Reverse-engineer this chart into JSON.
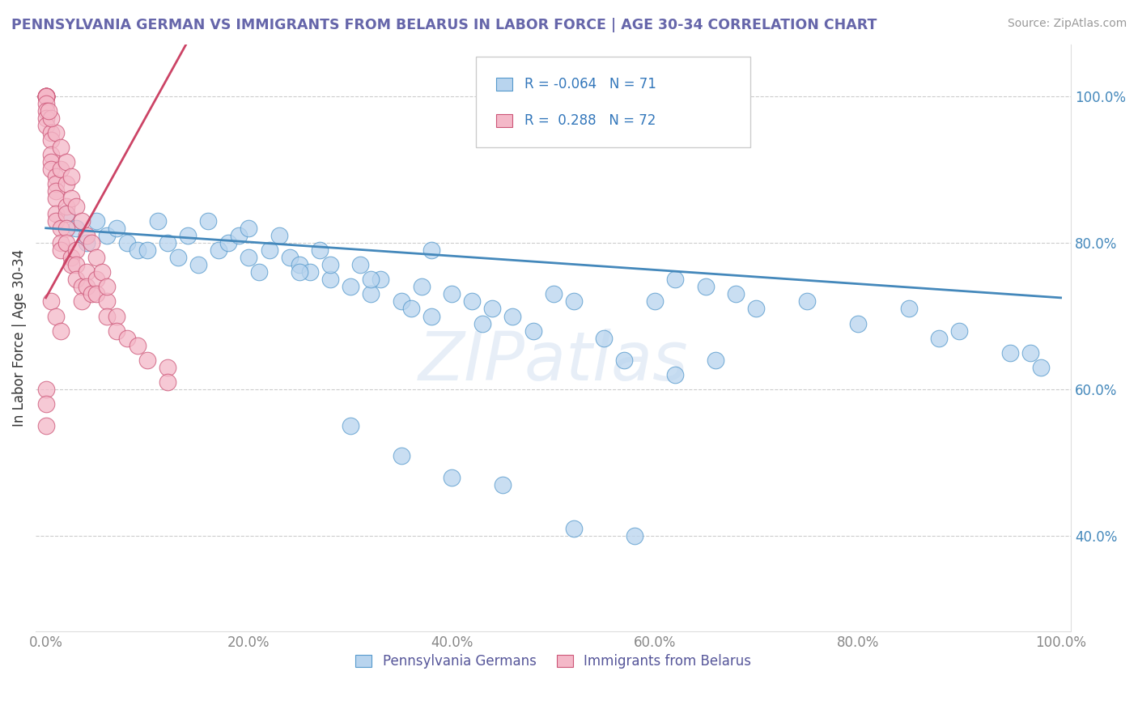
{
  "title": "PENNSYLVANIA GERMAN VS IMMIGRANTS FROM BELARUS IN LABOR FORCE | AGE 30-34 CORRELATION CHART",
  "source_text": "Source: ZipAtlas.com",
  "ylabel": "In Labor Force | Age 30-34",
  "legend_label_blue": "Pennsylvania Germans",
  "legend_label_pink": "Immigrants from Belarus",
  "r_blue": -0.064,
  "n_blue": 71,
  "r_pink": 0.288,
  "n_pink": 72,
  "xtick_vals": [
    0.0,
    0.2,
    0.4,
    0.6,
    0.8,
    1.0
  ],
  "ytick_vals": [
    0.4,
    0.6,
    0.8,
    1.0
  ],
  "color_blue_fill": "#b8d4ee",
  "color_blue_edge": "#5599cc",
  "color_blue_line": "#4488bb",
  "color_pink_fill": "#f4b8c8",
  "color_pink_edge": "#cc5577",
  "color_pink_line": "#cc4466",
  "watermark_text": "ZIPatlas",
  "background_color": "#ffffff",
  "grid_color": "#cccccc",
  "title_color": "#6666aa",
  "legend_text_color": "#3377bb",
  "source_color": "#999999",
  "ylabel_color": "#333333",
  "tick_color": "#888888",
  "bottom_legend_color": "#555599",
  "blue_scatter_x": [
    0.02,
    0.03,
    0.04,
    0.05,
    0.06,
    0.07,
    0.08,
    0.09,
    0.1,
    0.11,
    0.12,
    0.13,
    0.14,
    0.15,
    0.16,
    0.17,
    0.18,
    0.19,
    0.2,
    0.21,
    0.22,
    0.23,
    0.24,
    0.25,
    0.26,
    0.27,
    0.28,
    0.3,
    0.31,
    0.32,
    0.33,
    0.35,
    0.36,
    0.37,
    0.38,
    0.4,
    0.42,
    0.43,
    0.44,
    0.46,
    0.48,
    0.5,
    0.52,
    0.55,
    0.57,
    0.6,
    0.62,
    0.65,
    0.68,
    0.7,
    0.75,
    0.8,
    0.85,
    0.88,
    0.9,
    0.95,
    0.97,
    0.98,
    0.3,
    0.35,
    0.4,
    0.45,
    0.52,
    0.58,
    0.62,
    0.66,
    0.2,
    0.25,
    0.28,
    0.32,
    0.38
  ],
  "blue_scatter_y": [
    0.84,
    0.82,
    0.8,
    0.83,
    0.81,
    0.82,
    0.8,
    0.79,
    0.79,
    0.83,
    0.8,
    0.78,
    0.81,
    0.77,
    0.83,
    0.79,
    0.8,
    0.81,
    0.82,
    0.76,
    0.79,
    0.81,
    0.78,
    0.77,
    0.76,
    0.79,
    0.75,
    0.74,
    0.77,
    0.73,
    0.75,
    0.72,
    0.71,
    0.74,
    0.7,
    0.73,
    0.72,
    0.69,
    0.71,
    0.7,
    0.68,
    0.73,
    0.72,
    0.67,
    0.64,
    0.72,
    0.75,
    0.74,
    0.73,
    0.71,
    0.72,
    0.69,
    0.71,
    0.67,
    0.68,
    0.65,
    0.65,
    0.63,
    0.55,
    0.51,
    0.48,
    0.47,
    0.41,
    0.4,
    0.62,
    0.64,
    0.78,
    0.76,
    0.77,
    0.75,
    0.79
  ],
  "pink_scatter_x": [
    0.0,
    0.0,
    0.0,
    0.0,
    0.0,
    0.0,
    0.0,
    0.0,
    0.0,
    0.0,
    0.0,
    0.005,
    0.005,
    0.005,
    0.005,
    0.005,
    0.01,
    0.01,
    0.01,
    0.01,
    0.01,
    0.01,
    0.015,
    0.015,
    0.015,
    0.02,
    0.02,
    0.02,
    0.02,
    0.025,
    0.025,
    0.03,
    0.03,
    0.03,
    0.035,
    0.035,
    0.04,
    0.04,
    0.045,
    0.05,
    0.05,
    0.06,
    0.06,
    0.07,
    0.07,
    0.08,
    0.09,
    0.1,
    0.12,
    0.12,
    0.015,
    0.02,
    0.025,
    0.03,
    0.035,
    0.04,
    0.045,
    0.05,
    0.055,
    0.06,
    0.01,
    0.015,
    0.02,
    0.025,
    0.005,
    0.003,
    0.0,
    0.0,
    0.0,
    0.005,
    0.01,
    0.015
  ],
  "pink_scatter_y": [
    1.0,
    1.0,
    1.0,
    1.0,
    1.0,
    1.0,
    1.0,
    0.99,
    0.98,
    0.97,
    0.96,
    0.95,
    0.94,
    0.92,
    0.91,
    0.9,
    0.89,
    0.88,
    0.87,
    0.86,
    0.84,
    0.83,
    0.82,
    0.8,
    0.79,
    0.85,
    0.84,
    0.82,
    0.8,
    0.78,
    0.77,
    0.79,
    0.77,
    0.75,
    0.74,
    0.72,
    0.76,
    0.74,
    0.73,
    0.75,
    0.73,
    0.72,
    0.7,
    0.7,
    0.68,
    0.67,
    0.66,
    0.64,
    0.63,
    0.61,
    0.9,
    0.88,
    0.86,
    0.85,
    0.83,
    0.81,
    0.8,
    0.78,
    0.76,
    0.74,
    0.95,
    0.93,
    0.91,
    0.89,
    0.97,
    0.98,
    0.6,
    0.58,
    0.55,
    0.72,
    0.7,
    0.68
  ]
}
